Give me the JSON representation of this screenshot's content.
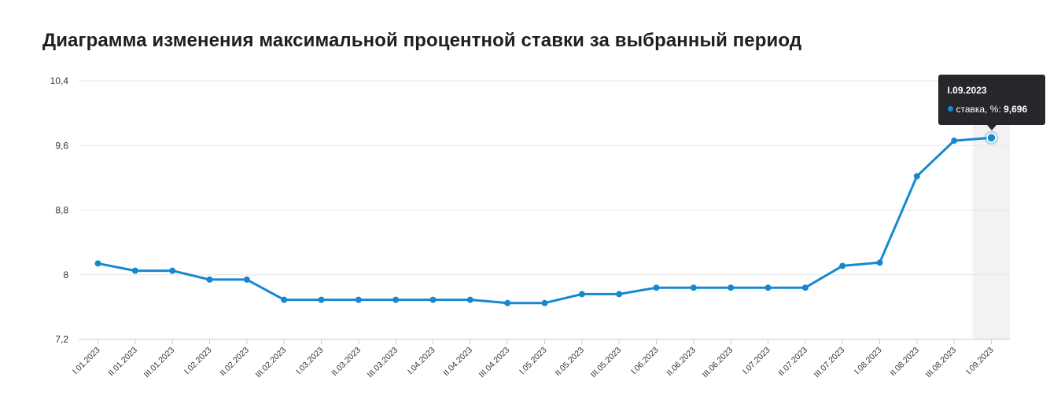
{
  "chart_data": {
    "type": "line",
    "title": "Диаграмма изменения максимальной процентной ставки за выбранный период",
    "xlabel": "",
    "ylabel": "",
    "ylim": [
      7.2,
      10.4
    ],
    "yticks": [
      "7,2",
      "8",
      "8,8",
      "9,6",
      "10,4"
    ],
    "grid": true,
    "categories": [
      "I.01.2023",
      "II.01.2023",
      "III.01.2023",
      "I.02.2023",
      "II.02.2023",
      "III.02.2023",
      "I.03.2023",
      "II.03.2023",
      "III.03.2023",
      "I.04.2023",
      "II.04.2023",
      "III.04.2023",
      "I.05.2023",
      "II.05.2023",
      "III.05.2023",
      "I.06.2023",
      "II.06.2023",
      "III.06.2023",
      "I.07.2023",
      "II.07.2023",
      "III.07.2023",
      "I.08.2023",
      "II.08.2023",
      "III.08.2023",
      "I.09.2023"
    ],
    "series": [
      {
        "name": "ставка, %",
        "color": "#1688d0",
        "values": [
          8.14,
          8.05,
          8.05,
          7.94,
          7.94,
          7.69,
          7.69,
          7.69,
          7.69,
          7.69,
          7.69,
          7.65,
          7.65,
          7.76,
          7.76,
          7.84,
          7.84,
          7.84,
          7.84,
          7.84,
          8.11,
          8.15,
          9.22,
          9.66,
          9.696
        ]
      }
    ],
    "highlight_index": 24,
    "tooltip": {
      "date": "I.09.2023",
      "label": "ставка, %:",
      "value": "9,696"
    }
  }
}
